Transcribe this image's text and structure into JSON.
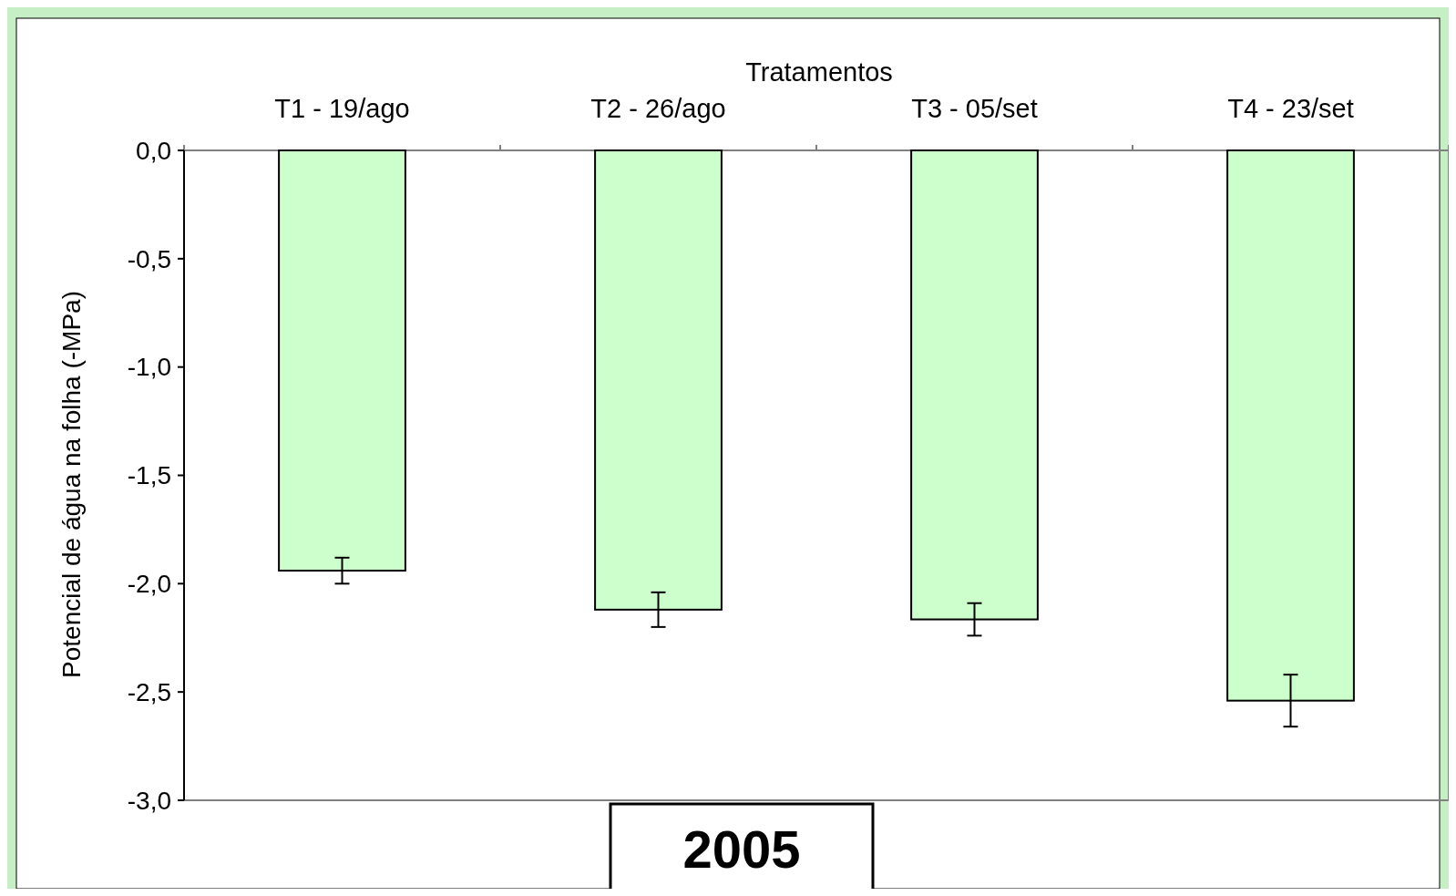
{
  "chart_data": {
    "type": "bar",
    "xlabel": "Tratamentos",
    "ylabel": "Potencial de água na folha (-MPa)",
    "categories": [
      "T1 - 19/ago",
      "T2 - 26/ago",
      "T3 - 05/set",
      "T4 - 23/set"
    ],
    "values": [
      -1.94,
      -2.12,
      -2.165,
      -2.54
    ],
    "errors": [
      0.06,
      0.08,
      0.075,
      0.12
    ],
    "color": "#ccffcc",
    "ylim": [
      -3,
      0
    ],
    "yticks": [
      {
        "value": 0,
        "label": "0,0"
      },
      {
        "value": -0.5,
        "label": "-0,5"
      },
      {
        "value": -1,
        "label": "-1,0"
      },
      {
        "value": -1.5,
        "label": "-1,5"
      },
      {
        "value": -2,
        "label": "-2,0"
      },
      {
        "value": -2.5,
        "label": "-2,5"
      },
      {
        "value": -3,
        "label": "-3,0"
      }
    ],
    "annotations": [
      "2005"
    ]
  }
}
